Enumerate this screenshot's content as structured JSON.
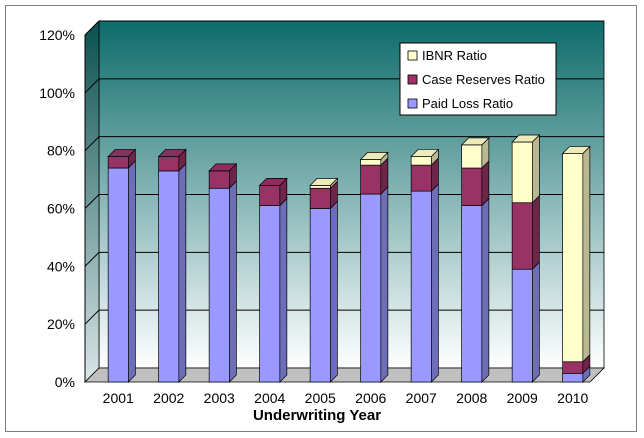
{
  "chart_data": {
    "type": "bar",
    "stacked": true,
    "three_d": true,
    "categories": [
      "2001",
      "2002",
      "2003",
      "2004",
      "2005",
      "2006",
      "2007",
      "2008",
      "2009",
      "2010"
    ],
    "series": [
      {
        "name": "Paid Loss Ratio",
        "color": "#9999ff",
        "values": [
          0.74,
          0.73,
          0.67,
          0.61,
          0.6,
          0.65,
          0.66,
          0.61,
          0.39,
          0.03
        ]
      },
      {
        "name": "Case Reserves Ratio",
        "color": "#993366",
        "values": [
          0.04,
          0.05,
          0.06,
          0.07,
          0.07,
          0.1,
          0.09,
          0.13,
          0.23,
          0.04
        ]
      },
      {
        "name": "IBNR Ratio",
        "color": "#ffffcc",
        "values": [
          0.0,
          0.0,
          0.0,
          0.0,
          0.01,
          0.02,
          0.03,
          0.08,
          0.21,
          0.72
        ]
      }
    ],
    "yticks": [
      "0%",
      "20%",
      "40%",
      "60%",
      "80%",
      "100%",
      "120%"
    ],
    "ylim": [
      0,
      1.2
    ],
    "xlabel": "Underwriting Year",
    "ylabel": "",
    "title": "",
    "legend_position": "top-right",
    "grid": true,
    "wall_color_top": "#0d6b6b",
    "wall_color_bottom": "#ffffff",
    "floor_color": "#c0c0c0"
  }
}
